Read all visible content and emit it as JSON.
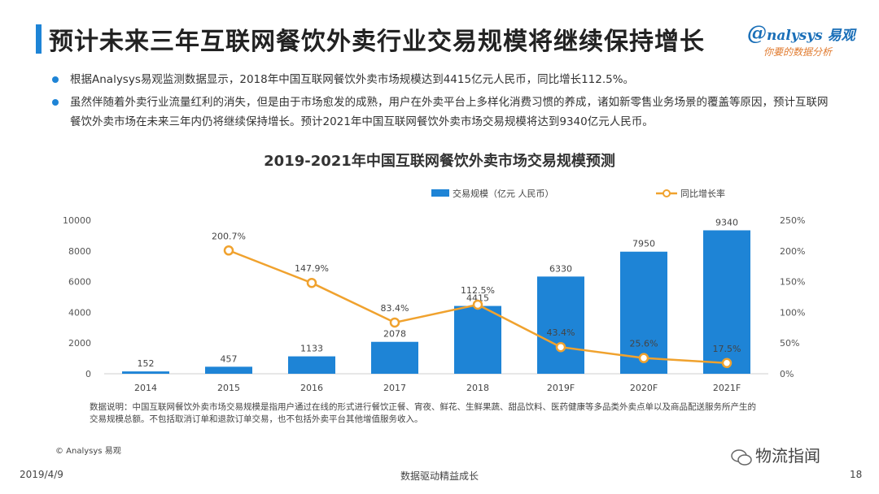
{
  "header": {
    "title": "预计未来三年互联网餐饮外卖行业交易规模将继续保持增长",
    "logo_brand": "nalysys 易观",
    "logo_tagline": "你要的数据分析"
  },
  "bullets": [
    "根据Analysys易观监测数据显示，2018年中国互联网餐饮外卖市场规模达到4415亿元人民币，同比增长112.5%。",
    "虽然伴随着外卖行业流量红利的消失，但是由于市场愈发的成熟，用户在外卖平台上多样化消费习惯的养成，诸如新零售业务场景的覆盖等原因，预计互联网餐饮外卖市场在未来三年内仍将继续保持增长。预计2021年中国互联网餐饮外卖市场交易规模将达到9340亿元人民币。"
  ],
  "chart_data": {
    "type": "bar",
    "title": "2019-2021年中国互联网餐饮外卖市场交易规模预测",
    "categories": [
      "2014",
      "2015",
      "2016",
      "2017",
      "2018",
      "2019F",
      "2020F",
      "2021F"
    ],
    "series": [
      {
        "name": "交易规模（亿元 人民币）",
        "type": "bar",
        "axis": "left",
        "values": [
          152,
          457,
          1133,
          2078,
          4415,
          6330,
          7950,
          9340
        ],
        "labels": [
          "152",
          "457",
          "1133",
          "2078",
          "4415",
          "6330",
          "7950",
          "9340"
        ]
      },
      {
        "name": "同比增长率",
        "type": "line",
        "axis": "right",
        "values": [
          null,
          200.7,
          147.9,
          83.4,
          112.5,
          43.4,
          25.6,
          17.5
        ],
        "labels": [
          "",
          "200.7%",
          "147.9%",
          "83.4%",
          "112.5%",
          "43.4%",
          "25.6%",
          "17.5%"
        ]
      }
    ],
    "y_left": {
      "ticks": [
        "0",
        "2000",
        "4000",
        "6000",
        "8000",
        "10000"
      ],
      "ylim": [
        0,
        10000
      ]
    },
    "y_right": {
      "ticks": [
        "0%",
        "50%",
        "100%",
        "150%",
        "200%",
        "250%"
      ],
      "ylim": [
        0,
        250
      ]
    },
    "legend_position": "top",
    "grid": false,
    "colors": {
      "bar": "#1e84d6",
      "line": "#f0a22e"
    }
  },
  "note": "数据说明：中国互联网餐饮外卖市场交易规模是指用户通过在线的形式进行餐饮正餐、宵夜、鲜花、生鲜果蔬、甜品饮料、医药健康等多品类外卖点单以及商品配送服务所产生的交易规模总额。不包括取消订单和退款订单交易，也不包括外卖平台其他增值服务收入。",
  "copyright": "© Analysys 易观",
  "footer": {
    "date": "2019/4/9",
    "center": "数据驱动精益成长",
    "page": "18"
  },
  "wechat": "物流指闻"
}
